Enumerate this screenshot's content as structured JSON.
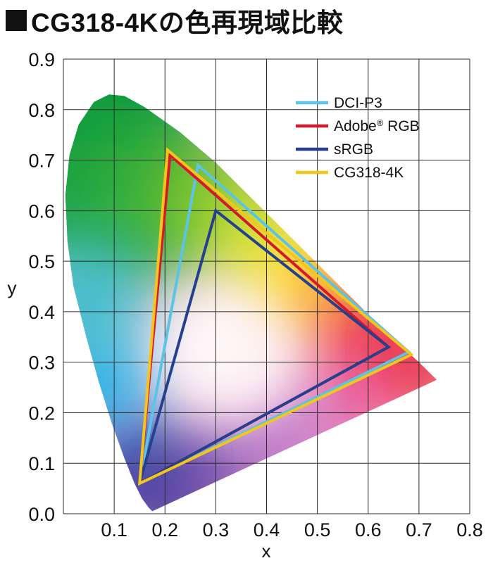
{
  "chart_data": {
    "type": "line",
    "title": "CG318-4Kの色再現域比較",
    "xlabel": "x",
    "ylabel": "y",
    "xlim": [
      0,
      0.8
    ],
    "ylim": [
      0,
      0.9
    ],
    "x_ticks": [
      "0.1",
      "0.2",
      "0.3",
      "0.4",
      "0.5",
      "0.6",
      "0.7",
      "0.8"
    ],
    "y_ticks": [
      "0.0",
      "0.1",
      "0.2",
      "0.3",
      "0.4",
      "0.5",
      "0.6",
      "0.7",
      "0.8",
      "0.9"
    ],
    "grid": true,
    "legend_position": "top-right",
    "spectral_locus": [
      [
        0.175,
        0.005
      ],
      [
        0.168,
        0.012
      ],
      [
        0.155,
        0.03
      ],
      [
        0.14,
        0.06
      ],
      [
        0.12,
        0.11
      ],
      [
        0.095,
        0.18
      ],
      [
        0.07,
        0.26
      ],
      [
        0.045,
        0.35
      ],
      [
        0.02,
        0.45
      ],
      [
        0.008,
        0.54
      ],
      [
        0.004,
        0.63
      ],
      [
        0.012,
        0.71
      ],
      [
        0.03,
        0.77
      ],
      [
        0.06,
        0.815
      ],
      [
        0.09,
        0.83
      ],
      [
        0.12,
        0.827
      ],
      [
        0.16,
        0.805
      ],
      [
        0.23,
        0.755
      ],
      [
        0.3,
        0.695
      ],
      [
        0.38,
        0.615
      ],
      [
        0.45,
        0.545
      ],
      [
        0.52,
        0.475
      ],
      [
        0.58,
        0.415
      ],
      [
        0.64,
        0.355
      ],
      [
        0.7,
        0.3
      ],
      [
        0.735,
        0.265
      ]
    ],
    "series": [
      {
        "name": "DCI-P3",
        "color": "#5bc3e6",
        "points": [
          [
            0.68,
            0.32
          ],
          [
            0.265,
            0.69
          ],
          [
            0.15,
            0.06
          ]
        ]
      },
      {
        "name": "Adobe® RGB",
        "color": "#d7182a",
        "points": [
          [
            0.64,
            0.33
          ],
          [
            0.21,
            0.71
          ],
          [
            0.15,
            0.06
          ]
        ]
      },
      {
        "name": "sRGB",
        "color": "#25408f",
        "points": [
          [
            0.64,
            0.33
          ],
          [
            0.3,
            0.6
          ],
          [
            0.15,
            0.06
          ]
        ]
      },
      {
        "name": "CG318-4K",
        "color": "#f4c51c",
        "points": [
          [
            0.685,
            0.315
          ],
          [
            0.205,
            0.72
          ],
          [
            0.15,
            0.06
          ]
        ]
      }
    ]
  }
}
